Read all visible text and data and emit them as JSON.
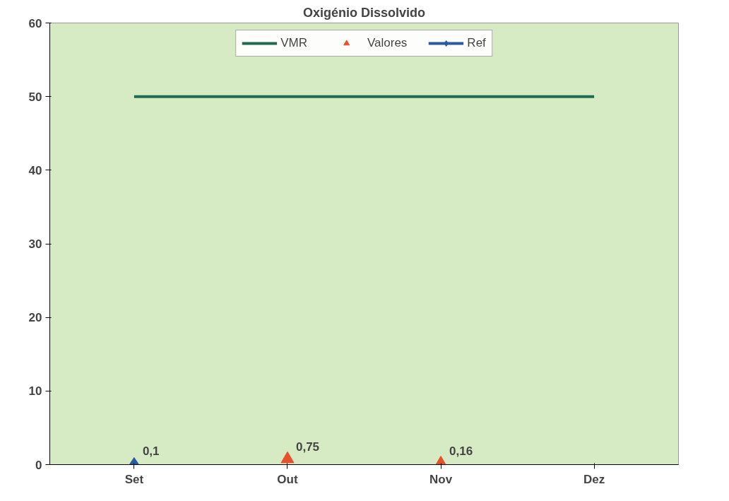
{
  "chart_data": {
    "type": "line",
    "title": "Oxigénio Dissolvido",
    "categories": [
      "Set",
      "Out",
      "Nov",
      "Dez"
    ],
    "ylim": [
      0,
      60
    ],
    "yticks": [
      0,
      10,
      20,
      30,
      40,
      50,
      60
    ],
    "grid": false,
    "legend": "top center",
    "series": [
      {
        "name": "VMR",
        "color": "#1f6b4f",
        "marker": "none",
        "values": [
          50,
          50,
          50,
          50
        ]
      },
      {
        "name": "Valores",
        "type": "scatter",
        "color": "#e8502a",
        "marker": "triangle",
        "values": [
          null,
          0.75,
          0.16,
          null
        ],
        "value_labels": [
          null,
          "0,75",
          "0,16",
          null
        ]
      },
      {
        "name": "Ref",
        "color": "#2a5aa0",
        "marker": "diamond",
        "values": [
          0.1,
          null,
          null,
          null
        ],
        "value_labels": [
          "0,1",
          null,
          null,
          null
        ]
      }
    ]
  }
}
